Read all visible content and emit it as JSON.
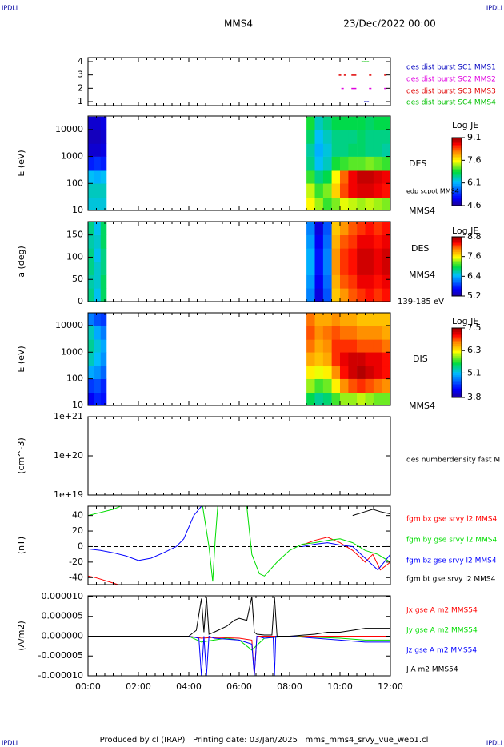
{
  "header": {
    "corner_left": "IPDLI",
    "corner_right": "IPDLI",
    "spacecraft": "MMS4",
    "date": "23/Dec/2022 00:00"
  },
  "footer": {
    "text": "Produced by cl (IRAP)   Printing date: 03/Jan/2025   mms_mms4_srvy_vue_web1.cl",
    "corner_left": "IPDLI",
    "corner_right": "IPDLI"
  },
  "time_axis": {
    "xlim": [
      0,
      12
    ],
    "xticks": [
      {
        "value": 0,
        "label": "00:00"
      },
      {
        "value": 2,
        "label": "02:00"
      },
      {
        "value": 4,
        "label": "04:00"
      },
      {
        "value": 6,
        "label": "06:00"
      },
      {
        "value": 8,
        "label": "08:00"
      },
      {
        "value": 10,
        "label": "10:00"
      },
      {
        "value": 12,
        "label": "12:00"
      }
    ]
  },
  "chart_data": [
    {
      "type": "scatter",
      "ylim": [
        0.7,
        4.3
      ],
      "yticks": [
        1,
        2,
        3,
        4
      ],
      "series": [
        {
          "name": "des dist burst SC1 MMS1",
          "color": "#0000c0",
          "x": [
            11.0,
            11.1
          ],
          "values": [
            1,
            1
          ]
        },
        {
          "name": "des dist burst SC2 MMS2",
          "color": "#e000e0",
          "x": [
            10.1,
            10.5,
            10.6,
            11.2,
            11.8
          ],
          "values": [
            2,
            2,
            2,
            2,
            2
          ]
        },
        {
          "name": "des dist burst SC3 MMS3",
          "color": "#e00000",
          "x": [
            10.0,
            10.2,
            10.5,
            10.6,
            11.2,
            11.8
          ],
          "values": [
            3,
            3,
            3,
            3,
            3,
            3
          ]
        },
        {
          "name": "des dist burst SC4 MMS4",
          "color": "#00c000",
          "x": [
            10.9,
            11.0,
            11.1
          ],
          "values": [
            4,
            4,
            4
          ]
        }
      ]
    },
    {
      "type": "heatmap",
      "ylabel": "E (eV)",
      "ylog": true,
      "ylim": [
        10,
        31623
      ],
      "yticks": [
        10,
        100,
        1000,
        10000
      ],
      "y_bins": [
        10,
        30,
        100,
        300,
        1000,
        3000,
        10000,
        30000
      ],
      "zlim": [
        4.6,
        9.1
      ],
      "zticks": [
        9.1,
        7.6,
        6.1,
        4.6
      ],
      "colorbar_title": "Log JE",
      "labels": [
        "DES",
        "edp scpot MMS4",
        "MMS4"
      ],
      "blocks": [
        {
          "x_bins": [
            0,
            0.25,
            0.5,
            0.73
          ],
          "z": [
            [
              6.3,
              6.3,
              6.3
            ],
            [
              6.4,
              6.4,
              6.4
            ],
            [
              6.2,
              6.1,
              6.2
            ],
            [
              5.3,
              5.4,
              5.3
            ],
            [
              4.9,
              4.9,
              5.0
            ],
            [
              4.8,
              4.8,
              4.9
            ],
            [
              4.9,
              4.9,
              5.0
            ]
          ]
        },
        {
          "x_bins": [
            8.67,
            9,
            9.33,
            9.67,
            10,
            10.33,
            10.67,
            11,
            11.33,
            11.67,
            12
          ],
          "z": [
            [
              7.6,
              7.3,
              7.0,
              7.2,
              7.5,
              7.4,
              7.3,
              7.4,
              7.3,
              7.2
            ],
            [
              7.4,
              7.0,
              7.2,
              7.8,
              8.4,
              8.7,
              8.8,
              8.8,
              8.7,
              8.6
            ],
            [
              7.0,
              6.6,
              6.8,
              7.6,
              8.3,
              8.7,
              8.9,
              8.9,
              8.8,
              8.7
            ],
            [
              6.6,
              6.2,
              6.4,
              6.9,
              7.0,
              7.1,
              7.1,
              7.2,
              7.1,
              7.0
            ],
            [
              6.5,
              6.1,
              6.3,
              6.6,
              6.6,
              6.7,
              6.7,
              6.6,
              6.6,
              6.5
            ],
            [
              6.7,
              6.2,
              6.4,
              6.6,
              6.6,
              6.6,
              6.7,
              6.6,
              6.6,
              6.6
            ],
            [
              6.9,
              6.4,
              6.6,
              6.8,
              6.8,
              6.8,
              6.8,
              6.7,
              6.8,
              6.8
            ]
          ]
        }
      ]
    },
    {
      "type": "heatmap",
      "ylabel": "a (deg)",
      "ylog": false,
      "ylim": [
        0,
        180
      ],
      "yticks": [
        0,
        50,
        100,
        150
      ],
      "y_bins": [
        0,
        30,
        60,
        90,
        120,
        150,
        180
      ],
      "zlim": [
        5.2,
        8.8
      ],
      "zticks": [
        8.8,
        7.6,
        6.4,
        5.2
      ],
      "colorbar_title": "Log JE",
      "labels": [
        "DES",
        "MMS4",
        "139-185 eV"
      ],
      "blocks": [
        {
          "x_bins": [
            0,
            0.25,
            0.5,
            0.73
          ],
          "z": [
            [
              6.8,
              6.5,
              6.9
            ],
            [
              6.7,
              6.6,
              6.9
            ],
            [
              6.8,
              6.6,
              6.8
            ],
            [
              6.8,
              6.5,
              6.8
            ],
            [
              6.7,
              6.6,
              6.9
            ],
            [
              6.8,
              6.5,
              6.9
            ]
          ]
        },
        {
          "x_bins": [
            8.67,
            9,
            9.33,
            9.67,
            10,
            10.33,
            10.67,
            11,
            11.33,
            11.67,
            12
          ],
          "z": [
            [
              6.2,
              5.5,
              6.0,
              7.8,
              8.0,
              8.2,
              8.3,
              8.4,
              8.3,
              8.4
            ],
            [
              6.3,
              5.6,
              6.1,
              7.9,
              8.2,
              8.3,
              8.5,
              8.5,
              8.4,
              8.5
            ],
            [
              6.4,
              5.7,
              6.2,
              8.0,
              8.3,
              8.4,
              8.6,
              8.6,
              8.5,
              8.6
            ],
            [
              6.4,
              5.7,
              6.2,
              8.0,
              8.3,
              8.4,
              8.6,
              8.6,
              8.5,
              8.6
            ],
            [
              6.3,
              5.6,
              6.1,
              7.9,
              8.2,
              8.3,
              8.5,
              8.5,
              8.4,
              8.5
            ],
            [
              6.2,
              5.5,
              6.0,
              7.8,
              8.0,
              8.2,
              8.3,
              8.4,
              8.3,
              8.4
            ]
          ]
        }
      ]
    },
    {
      "type": "heatmap",
      "ylabel": "E (eV)",
      "ylog": true,
      "ylim": [
        10,
        30000
      ],
      "yticks": [
        10,
        100,
        1000,
        10000
      ],
      "y_bins": [
        10,
        30,
        100,
        300,
        1000,
        3000,
        10000,
        30000
      ],
      "zlim": [
        3.8,
        7.5
      ],
      "zticks": [
        7.5,
        6.3,
        5.1,
        3.8
      ],
      "colorbar_title": "Log JE",
      "labels": [
        "DIS",
        "MMS4"
      ],
      "blocks": [
        {
          "x_bins": [
            0,
            0.25,
            0.5,
            0.73
          ],
          "z": [
            [
              4.2,
              4.4,
              4.3
            ],
            [
              4.5,
              4.6,
              4.4
            ],
            [
              5.0,
              4.9,
              4.7
            ],
            [
              5.3,
              5.1,
              4.9
            ],
            [
              5.4,
              5.2,
              5.0
            ],
            [
              5.3,
              5.0,
              4.8
            ],
            [
              4.8,
              4.6,
              4.5
            ]
          ]
        },
        {
          "x_bins": [
            8.67,
            9,
            9.33,
            9.67,
            10,
            10.33,
            10.67,
            11,
            11.33,
            11.67,
            12
          ],
          "z": [
            [
              5.6,
              5.4,
              5.5,
              5.8,
              6.0,
              6.0,
              6.1,
              6.0,
              5.9,
              5.9
            ],
            [
              6.0,
              5.8,
              5.9,
              6.3,
              6.7,
              6.9,
              7.0,
              6.9,
              6.8,
              6.7
            ],
            [
              6.3,
              6.2,
              6.3,
              6.7,
              7.1,
              7.3,
              7.4,
              7.3,
              7.2,
              7.1
            ],
            [
              6.6,
              6.5,
              6.6,
              7.0,
              7.2,
              7.3,
              7.3,
              7.2,
              7.2,
              7.1
            ],
            [
              6.8,
              6.6,
              6.7,
              7.0,
              7.0,
              7.0,
              6.9,
              6.9,
              6.9,
              6.8
            ],
            [
              6.9,
              6.7,
              6.8,
              6.9,
              6.8,
              6.8,
              6.7,
              6.7,
              6.7,
              6.6
            ],
            [
              6.8,
              6.6,
              6.6,
              6.7,
              6.6,
              6.6,
              6.5,
              6.5,
              6.5,
              6.5
            ]
          ]
        }
      ]
    },
    {
      "type": "line",
      "ylabel": "(cm^-3)",
      "ylog": true,
      "ylim": [
        1e+19,
        1e+21
      ],
      "yticks": [
        {
          "value": 1e+19,
          "label": "1e+19"
        },
        {
          "value": 1e+20,
          "label": "1e+20"
        },
        {
          "value": 1e+21,
          "label": "1e+21"
        }
      ],
      "labels": [
        "des numberdensity fast M"
      ],
      "series": []
    },
    {
      "type": "line",
      "ylabel": "(nT)",
      "ylog": false,
      "ylim": [
        -49,
        52
      ],
      "yticks": [
        -40,
        -20,
        0,
        20,
        40
      ],
      "zero_line": true,
      "series": [
        {
          "name": "fgm bx gse srvy l2 MMS4",
          "color": "#ff0000",
          "x": [
            0,
            0.3,
            0.8,
            1.3,
            4,
            8.5,
            9,
            9.5,
            10,
            10.5,
            11,
            11.3,
            11.6,
            12
          ],
          "values": [
            -38,
            -40,
            -45,
            -50,
            null,
            2,
            8,
            12,
            5,
            -5,
            -20,
            -10,
            -30,
            -20
          ]
        },
        {
          "name": "fgm by gse srvy l2 MMS4",
          "color": "#00dd00",
          "x": [
            0,
            0.5,
            1.0,
            1.3,
            2,
            4.55,
            4.8,
            4.95,
            5.05,
            5.15,
            5.7,
            6.3,
            6.5,
            6.8,
            7.0,
            7.5,
            8.0,
            8.5,
            9,
            9.5,
            10,
            10.5,
            11,
            11.5,
            12
          ],
          "values": [
            40,
            44,
            48,
            52,
            null,
            52,
            0,
            -45,
            10,
            52,
            null,
            52,
            -10,
            -35,
            -38,
            -20,
            -5,
            3,
            5,
            8,
            10,
            5,
            -5,
            -10,
            -20
          ]
        },
        {
          "name": "fgm bz gse srvy l2 MMS4",
          "color": "#0000ff",
          "x": [
            0,
            0.5,
            1,
            1.5,
            2,
            2.5,
            3,
            3.5,
            3.8,
            4.0,
            4.2,
            4.5,
            6,
            8.5,
            9,
            9.5,
            10,
            10.5,
            11,
            11.5,
            12
          ],
          "values": [
            -3,
            -5,
            -8,
            -12,
            -18,
            -15,
            -8,
            0,
            10,
            25,
            40,
            52,
            null,
            0,
            3,
            5,
            2,
            0,
            -15,
            -30,
            -10
          ]
        },
        {
          "name": "fgm bt gse srvy l2 MMS4",
          "color": "#000000",
          "x": [
            10.5,
            11,
            11.3,
            11.6,
            12
          ],
          "values": [
            40,
            45,
            48,
            45,
            42
          ]
        }
      ]
    },
    {
      "type": "line",
      "ylabel": "(A/m2)",
      "ylog": false,
      "ylim": [
        -1e-05,
        1.02e-05
      ],
      "yticks": [
        {
          "value": -1e-05,
          "label": "-0.000010"
        },
        {
          "value": -5e-06,
          "label": "-0.000005"
        },
        {
          "value": 0,
          "label": "0.000000"
        },
        {
          "value": 5e-06,
          "label": "0.000005"
        },
        {
          "value": 1e-05,
          "label": "0.000010"
        }
      ],
      "series": [
        {
          "name": "Jx gse A m2 MMS54",
          "color": "#ff0000",
          "x": [
            0,
            4,
            4.5,
            5,
            6,
            6.5,
            6.6,
            6.7,
            7,
            8,
            12
          ],
          "values": [
            0,
            0,
            -5e-07,
            -3e-07,
            -5e-07,
            -1e-06,
            -1e-05,
            0,
            0,
            0,
            0
          ]
        },
        {
          "name": "Jy gse A m2 MMS54",
          "color": "#00dd00",
          "x": [
            0,
            4,
            4.5,
            5,
            5.5,
            6,
            6.5,
            7,
            8,
            10,
            11,
            12
          ],
          "values": [
            0,
            0,
            -1.5e-06,
            -1e-06,
            -5e-07,
            -1e-06,
            -3.5e-06,
            -5e-07,
            0,
            -5e-07,
            -1e-06,
            -1e-06
          ]
        },
        {
          "name": "Jz gse A m2 MMS54",
          "color": "#0000ff",
          "x": [
            0,
            4,
            4.4,
            4.5,
            4.6,
            4.7,
            4.8,
            5,
            6,
            6.5,
            6.6,
            6.7,
            7,
            7.35,
            7.4,
            7.45,
            8,
            10,
            11,
            12
          ],
          "values": [
            0,
            0,
            -5e-07,
            -1e-05,
            0,
            -1e-05,
            0,
            -5e-07,
            -1e-06,
            -2e-06,
            -1e-05,
            0,
            -5e-07,
            -3e-07,
            -1e-05,
            0,
            0,
            -1e-06,
            -1.5e-06,
            -1.5e-06
          ]
        },
        {
          "name": "J A m2 MMS54",
          "color": "#000000",
          "x": [
            0,
            4,
            4.3,
            4.5,
            4.6,
            4.7,
            4.8,
            5.0,
            5.5,
            5.8,
            6.0,
            6.3,
            6.5,
            6.6,
            6.7,
            7.0,
            7.3,
            7.4,
            7.5,
            8,
            9,
            9.5,
            10,
            10.5,
            11,
            11.5,
            12
          ],
          "values": [
            0,
            0,
            1.5e-06,
            9.5e-06,
            1e-06,
            1e-05,
            5e-07,
            1e-06,
            2.5e-06,
            4e-06,
            4.5e-06,
            4e-06,
            1e-05,
            1e-06,
            5e-07,
            3e-07,
            3e-07,
            1e-05,
            0,
            0,
            5e-07,
            1e-06,
            1e-06,
            1.5e-06,
            2e-06,
            2e-06,
            2e-06
          ]
        }
      ]
    }
  ]
}
